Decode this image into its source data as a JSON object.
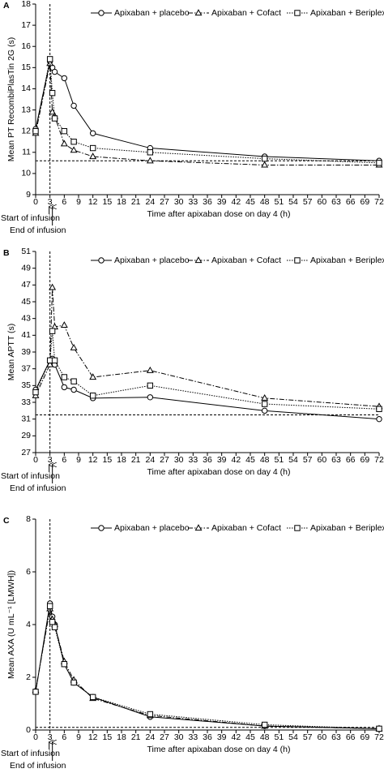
{
  "chart_data": [
    {
      "type": "line",
      "label": "A",
      "y_label": "Mean PT RecombiPlasTin 2G (s)",
      "x_label": "Time after apixaban dose on day 4 (h)",
      "annotations": [
        "Start of infusion",
        "End of infusion"
      ],
      "x": [
        0,
        3,
        3.5,
        4,
        6,
        8,
        12,
        24,
        48,
        72
      ],
      "series": [
        {
          "name": "Apixaban + placebo",
          "color": "#000000",
          "marker": "circle",
          "dash": "solid",
          "values": [
            12.1,
            15.3,
            15.0,
            14.8,
            14.5,
            13.2,
            11.9,
            11.2,
            10.8,
            10.6
          ]
        },
        {
          "name": "Apixaban + Cofact",
          "color": "#000000",
          "marker": "triangle",
          "dash": "dashdot",
          "values": [
            11.9,
            15.2,
            12.9,
            12.7,
            11.4,
            11.1,
            10.8,
            10.6,
            10.4,
            10.4
          ]
        },
        {
          "name": "Apixaban + Beriplex",
          "color": "#000000",
          "marker": "square",
          "dash": "dotted",
          "values": [
            12.0,
            15.4,
            13.8,
            12.6,
            12.0,
            11.5,
            11.2,
            11.0,
            10.7,
            10.5
          ]
        }
      ],
      "reference_y": 10.6,
      "infusion_x": 3,
      "xlim": [
        0,
        72
      ],
      "xticks": [
        0,
        3,
        6,
        9,
        12,
        15,
        18,
        21,
        24,
        27,
        30,
        33,
        36,
        39,
        42,
        45,
        48,
        51,
        54,
        57,
        60,
        63,
        66,
        69,
        72
      ],
      "ylim": [
        9,
        18
      ],
      "yticks": [
        9,
        10,
        11,
        12,
        13,
        14,
        15,
        16,
        17,
        18
      ]
    },
    {
      "type": "line",
      "label": "B",
      "y_label": "Mean APTT (s)",
      "x_label": "Time after apixaban dose on day 4 (h)",
      "annotations": [
        "Start of infusion",
        "End of infusion"
      ],
      "x": [
        0,
        3,
        3.5,
        4,
        6,
        8,
        12,
        24,
        48,
        72
      ],
      "series": [
        {
          "name": "Apixaban + placebo",
          "color": "#000000",
          "marker": "circle",
          "dash": "solid",
          "values": [
            34.5,
            38.0,
            38.2,
            37.5,
            34.8,
            34.5,
            33.5,
            33.6,
            32.0,
            31.0
          ]
        },
        {
          "name": "Apixaban + Cofact",
          "color": "#000000",
          "marker": "triangle",
          "dash": "dashdot",
          "values": [
            33.8,
            37.5,
            46.7,
            42.0,
            42.2,
            39.5,
            36.0,
            36.8,
            33.5,
            32.5
          ]
        },
        {
          "name": "Apixaban + Beriplex",
          "color": "#000000",
          "marker": "square",
          "dash": "dotted",
          "values": [
            34.2,
            38.0,
            41.5,
            38.0,
            36.0,
            35.5,
            33.8,
            35.0,
            32.8,
            32.2
          ]
        }
      ],
      "reference_y": 31.5,
      "infusion_x": 3,
      "xlim": [
        0,
        72
      ],
      "xticks": [
        0,
        3,
        6,
        9,
        12,
        15,
        18,
        21,
        24,
        27,
        30,
        33,
        36,
        39,
        42,
        45,
        48,
        51,
        54,
        57,
        60,
        63,
        66,
        69,
        72
      ],
      "ylim": [
        27,
        51
      ],
      "yticks": [
        27,
        29,
        31,
        33,
        35,
        37,
        39,
        41,
        43,
        45,
        47,
        49,
        51
      ]
    },
    {
      "type": "line",
      "label": "C",
      "y_label": "Mean AXA (U mL⁻¹ [LMWH])",
      "x_label": "Time after apixaban dose on day 4 (h)",
      "annotations": [
        "Start of infusion",
        "End of infusion"
      ],
      "x": [
        0,
        3,
        3.5,
        4,
        6,
        8,
        12,
        24,
        48,
        72
      ],
      "series": [
        {
          "name": "Apixaban + placebo",
          "color": "#000000",
          "marker": "circle",
          "dash": "solid",
          "values": [
            1.45,
            4.8,
            4.3,
            4.0,
            2.5,
            1.8,
            1.25,
            0.5,
            0.15,
            0.05
          ]
        },
        {
          "name": "Apixaban + Cofact",
          "color": "#000000",
          "marker": "triangle",
          "dash": "dashdot",
          "values": [
            1.5,
            4.6,
            4.2,
            4.0,
            2.6,
            1.9,
            1.2,
            0.55,
            0.15,
            0.05
          ]
        },
        {
          "name": "Apixaban + Beriplex",
          "color": "#000000",
          "marker": "square",
          "dash": "dotted",
          "values": [
            1.45,
            4.7,
            4.1,
            3.9,
            2.5,
            1.8,
            1.25,
            0.6,
            0.2,
            0.05
          ]
        }
      ],
      "reference_y": 0.1,
      "infusion_x": 3,
      "xlim": [
        0,
        72
      ],
      "xticks": [
        0,
        3,
        6,
        9,
        12,
        15,
        18,
        21,
        24,
        27,
        30,
        33,
        36,
        39,
        42,
        45,
        48,
        51,
        54,
        57,
        60,
        63,
        66,
        69,
        72
      ],
      "ylim": [
        0,
        8
      ],
      "yticks": [
        0,
        2,
        4,
        6,
        8
      ]
    }
  ]
}
